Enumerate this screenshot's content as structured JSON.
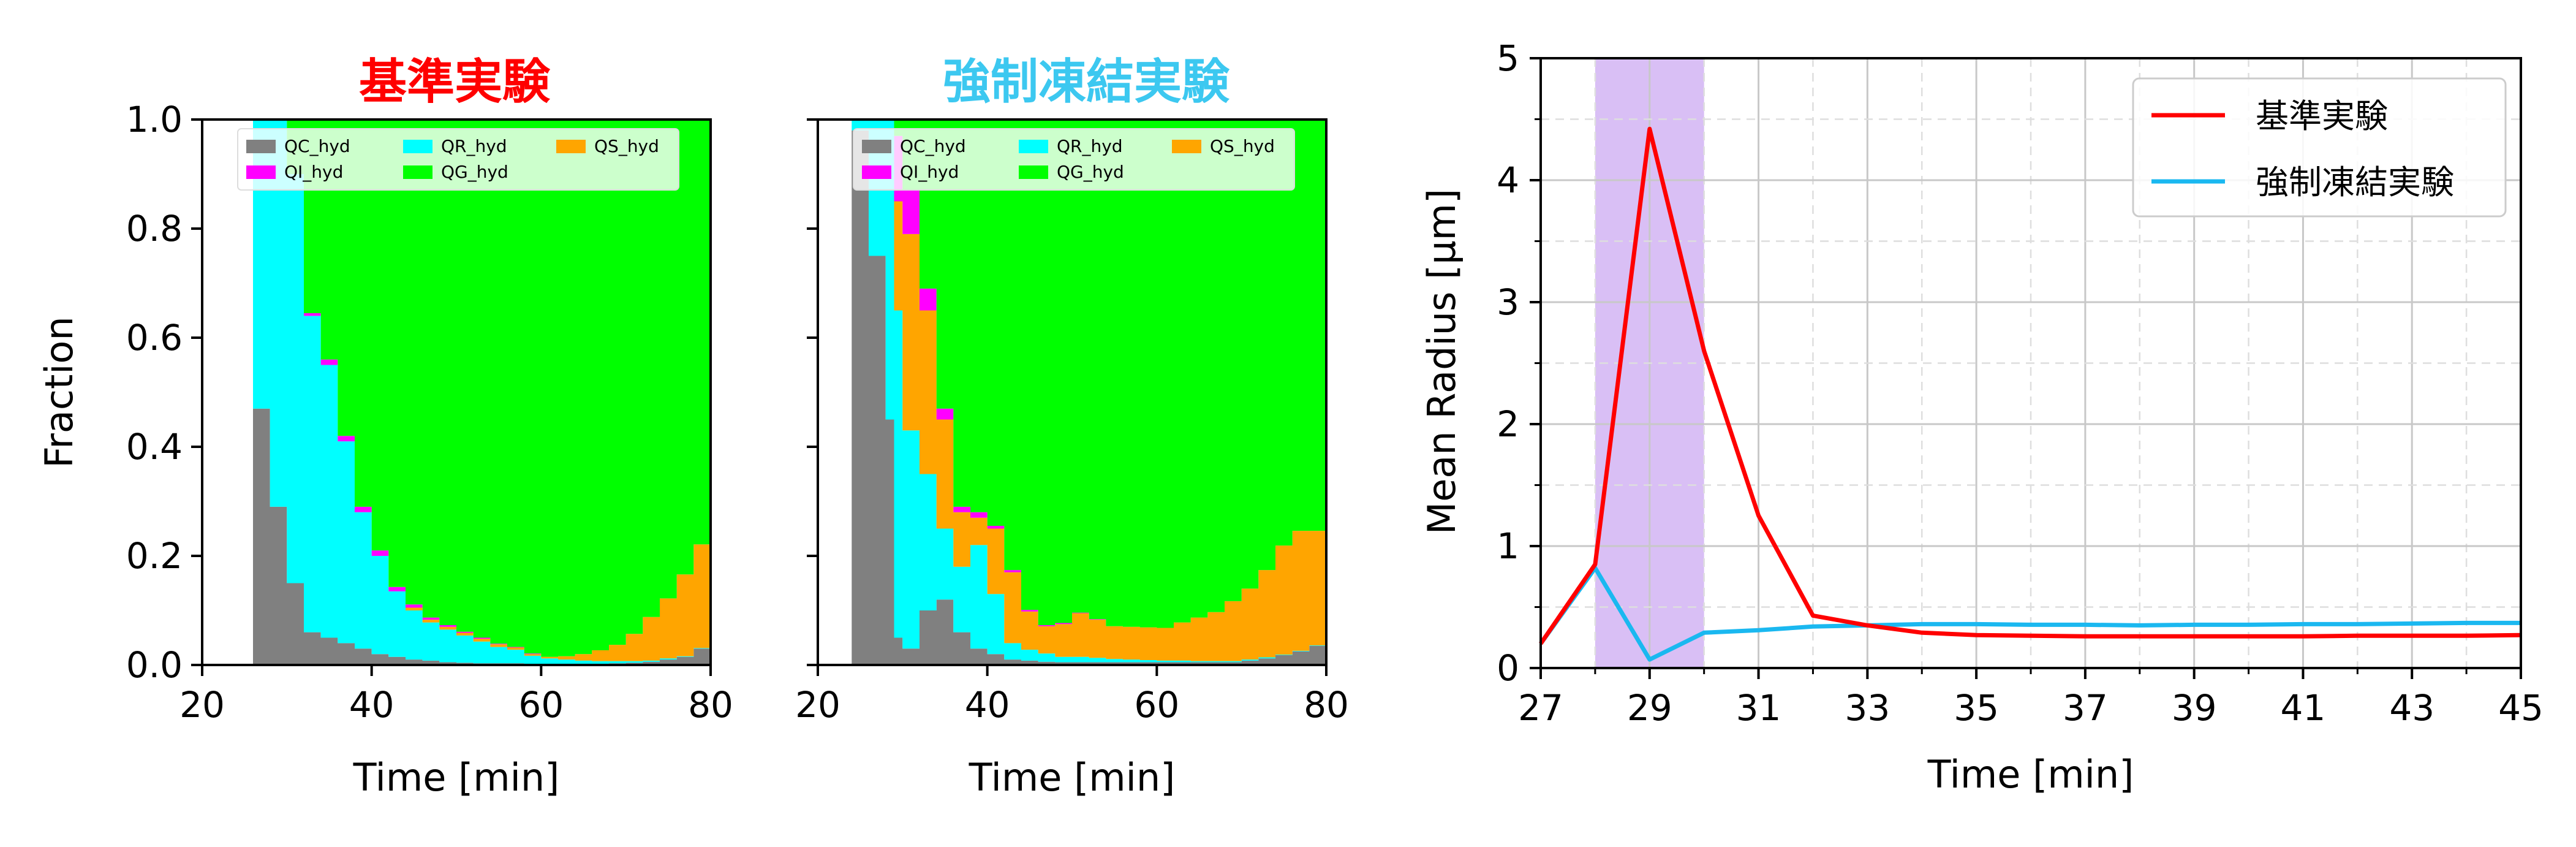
{
  "chart_data": [
    {
      "type": "area",
      "stacked": true,
      "title": "基準実験",
      "title_color": "#ff0000",
      "xlabel": "Time [min]",
      "ylabel": "Fraction",
      "xlim": [
        20,
        80
      ],
      "ylim": [
        0,
        1
      ],
      "xticks": [
        "20",
        "40",
        "60",
        "80"
      ],
      "yticks": [
        "0.0",
        "0.2",
        "0.4",
        "0.6",
        "0.8",
        "1.0"
      ],
      "legend_position": "top",
      "x": [
        20,
        24,
        26,
        28,
        30,
        32,
        34,
        36,
        38,
        40,
        42,
        44,
        46,
        48,
        50,
        52,
        54,
        56,
        58,
        60,
        62,
        64,
        66,
        68,
        70,
        72,
        74,
        76,
        78,
        80
      ],
      "series": [
        {
          "name": "QC_hyd",
          "color": "#808080",
          "values": [
            0,
            0,
            0.47,
            0.29,
            0.15,
            0.06,
            0.05,
            0.04,
            0.03,
            0.02,
            0.015,
            0.01,
            0.008,
            0.005,
            0.004,
            0.003,
            0.003,
            0.003,
            0.002,
            0.002,
            0.002,
            0.002,
            0.002,
            0.003,
            0.004,
            0.006,
            0.01,
            0.015,
            0.03,
            0.05
          ]
        },
        {
          "name": "QR_hyd",
          "color": "#00ffff",
          "values": [
            0,
            0,
            0.53,
            0.71,
            0.75,
            0.58,
            0.5,
            0.37,
            0.25,
            0.18,
            0.12,
            0.09,
            0.07,
            0.06,
            0.05,
            0.04,
            0.03,
            0.025,
            0.015,
            0.01,
            0.008,
            0.006,
            0.005,
            0.004,
            0.003,
            0.002,
            0.002,
            0.001,
            0.001,
            0.001
          ]
        },
        {
          "name": "QS_hyd",
          "color": "#ffa500",
          "values": [
            0,
            0,
            0,
            0,
            0,
            0,
            0,
            0,
            0,
            0,
            0,
            0.005,
            0.005,
            0.005,
            0.005,
            0.005,
            0.005,
            0.004,
            0.003,
            0.003,
            0.006,
            0.012,
            0.02,
            0.03,
            0.05,
            0.08,
            0.11,
            0.15,
            0.19,
            0.22
          ]
        },
        {
          "name": "QI_hyd",
          "color": "#ff00ff",
          "values": [
            0,
            0,
            0,
            0,
            0,
            0.005,
            0.01,
            0.01,
            0.01,
            0.01,
            0.008,
            0.006,
            0.004,
            0.003,
            0.002,
            0.002,
            0.001,
            0.001,
            0.001,
            0,
            0,
            0,
            0,
            0,
            0,
            0,
            0,
            0,
            0,
            0
          ]
        },
        {
          "name": "QG_hyd",
          "color": "#00ff00",
          "values": [
            0,
            0,
            0,
            0,
            0.1,
            0.355,
            0.44,
            0.58,
            0.71,
            0.79,
            0.857,
            0.889,
            0.913,
            0.927,
            0.939,
            0.95,
            0.961,
            0.967,
            0.979,
            0.985,
            0.984,
            0.98,
            0.973,
            0.963,
            0.943,
            0.912,
            0.878,
            0.834,
            0.779,
            0.729
          ]
        }
      ]
    },
    {
      "type": "area",
      "stacked": true,
      "title": "強制凍結実験",
      "title_color": "#3cc8f0",
      "xlabel": "Time [min]",
      "ylabel": "",
      "xlim": [
        20,
        80
      ],
      "ylim": [
        0,
        1
      ],
      "xticks": [
        "20",
        "40",
        "60",
        "80"
      ],
      "yticks": [
        "",
        "",
        "",
        "",
        "",
        ""
      ],
      "legend_position": "top",
      "x": [
        20,
        24,
        26,
        28,
        29,
        30,
        32,
        34,
        36,
        38,
        40,
        42,
        44,
        46,
        48,
        50,
        52,
        54,
        56,
        58,
        60,
        62,
        64,
        66,
        68,
        70,
        72,
        74,
        76,
        78,
        80
      ],
      "series": [
        {
          "name": "QC_hyd",
          "color": "#808080",
          "values": [
            0,
            0.98,
            0.75,
            0.45,
            0.05,
            0.03,
            0.1,
            0.12,
            0.06,
            0.03,
            0.02,
            0.01,
            0.008,
            0.006,
            0.005,
            0.005,
            0.005,
            0.005,
            0.005,
            0.005,
            0.005,
            0.005,
            0.005,
            0.005,
            0.005,
            0.008,
            0.012,
            0.018,
            0.025,
            0.035,
            0.05
          ]
        },
        {
          "name": "QR_hyd",
          "color": "#00ffff",
          "values": [
            0,
            0.02,
            0.25,
            0.55,
            0.6,
            0.4,
            0.25,
            0.13,
            0.12,
            0.19,
            0.11,
            0.03,
            0.02,
            0.015,
            0.01,
            0.01,
            0.008,
            0.006,
            0.005,
            0.004,
            0.003,
            0.003,
            0.002,
            0.002,
            0.002,
            0.002,
            0.002,
            0.001,
            0.001,
            0.001,
            0.001
          ]
        },
        {
          "name": "QS_hyd",
          "color": "#ffa500",
          "values": [
            0,
            0,
            0,
            0,
            0.2,
            0.36,
            0.3,
            0.2,
            0.1,
            0.05,
            0.12,
            0.13,
            0.07,
            0.05,
            0.06,
            0.08,
            0.07,
            0.06,
            0.06,
            0.06,
            0.06,
            0.07,
            0.08,
            0.09,
            0.11,
            0.13,
            0.16,
            0.2,
            0.22,
            0.21,
            0.18
          ]
        },
        {
          "name": "QI_hyd",
          "color": "#ff00ff",
          "values": [
            0,
            0,
            0,
            0,
            0.12,
            0.08,
            0.04,
            0.02,
            0.01,
            0.01,
            0.005,
            0.004,
            0.003,
            0.002,
            0.002,
            0.001,
            0.001,
            0,
            0,
            0,
            0,
            0,
            0,
            0,
            0,
            0,
            0,
            0,
            0,
            0,
            0
          ]
        },
        {
          "name": "QG_hyd",
          "color": "#00ff00",
          "values": [
            0,
            0,
            0,
            0,
            0.03,
            0.13,
            0.31,
            0.53,
            0.71,
            0.72,
            0.745,
            0.826,
            0.899,
            0.927,
            0.923,
            0.904,
            0.916,
            0.929,
            0.93,
            0.931,
            0.932,
            0.922,
            0.913,
            0.903,
            0.883,
            0.86,
            0.826,
            0.781,
            0.754,
            0.754,
            0.769
          ]
        }
      ]
    },
    {
      "type": "line",
      "title": "",
      "xlabel": "Time [min]",
      "ylabel": "Mean Radius [µm]",
      "xlim": [
        27,
        45
      ],
      "ylim": [
        0,
        5
      ],
      "xticks": [
        27,
        29,
        31,
        33,
        35,
        37,
        39,
        41,
        43,
        45
      ],
      "yticks": [
        0,
        1,
        2,
        3,
        4,
        5
      ],
      "grid": true,
      "legend_position": "top-right",
      "shaded_interval": {
        "x": [
          28,
          30
        ],
        "color": "#d9bff5"
      },
      "series": [
        {
          "name": "基準実験",
          "color": "#ff0000",
          "x": [
            27,
            28,
            29,
            30,
            31,
            32,
            33,
            34,
            35,
            36,
            37,
            38,
            39,
            40,
            41,
            42,
            43,
            44,
            45
          ],
          "values": [
            0.2,
            0.85,
            4.42,
            2.6,
            1.25,
            0.43,
            0.35,
            0.29,
            0.27,
            0.265,
            0.26,
            0.26,
            0.26,
            0.26,
            0.26,
            0.265,
            0.265,
            0.265,
            0.27
          ]
        },
        {
          "name": "強制凍結実験",
          "color": "#1ab8f0",
          "x": [
            27,
            28,
            29,
            30,
            31,
            32,
            33,
            34,
            35,
            36,
            37,
            38,
            39,
            40,
            41,
            42,
            43,
            44,
            45
          ],
          "values": [
            0.2,
            0.82,
            0.07,
            0.29,
            0.31,
            0.34,
            0.35,
            0.36,
            0.36,
            0.355,
            0.355,
            0.35,
            0.355,
            0.355,
            0.36,
            0.36,
            0.365,
            0.37,
            0.37
          ]
        }
      ]
    }
  ]
}
